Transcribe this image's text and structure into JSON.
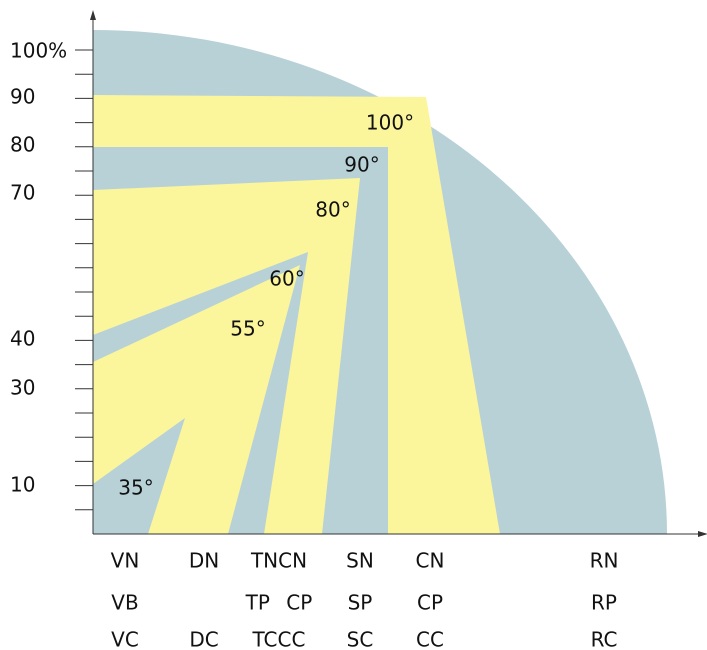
{
  "y_axis": {
    "labels": [
      "100%",
      "90",
      "80",
      "70",
      "40",
      "30",
      "10"
    ]
  },
  "angles": [
    "100°",
    "90°",
    "80°",
    "60°",
    "55°",
    "35°"
  ],
  "columns": [
    {
      "labels": [
        "VN",
        "VB",
        "VC"
      ]
    },
    {
      "labels": [
        "DN",
        null,
        "DC"
      ]
    },
    {
      "labels": [
        "TNCN",
        "TP CP",
        "TCCC"
      ]
    },
    {
      "labels": [
        "SN",
        "SP",
        "SC"
      ]
    },
    {
      "labels": [
        "CN",
        "CP",
        "CC"
      ]
    },
    {
      "labels": [
        "RN",
        "RP",
        "RC"
      ]
    }
  ]
}
